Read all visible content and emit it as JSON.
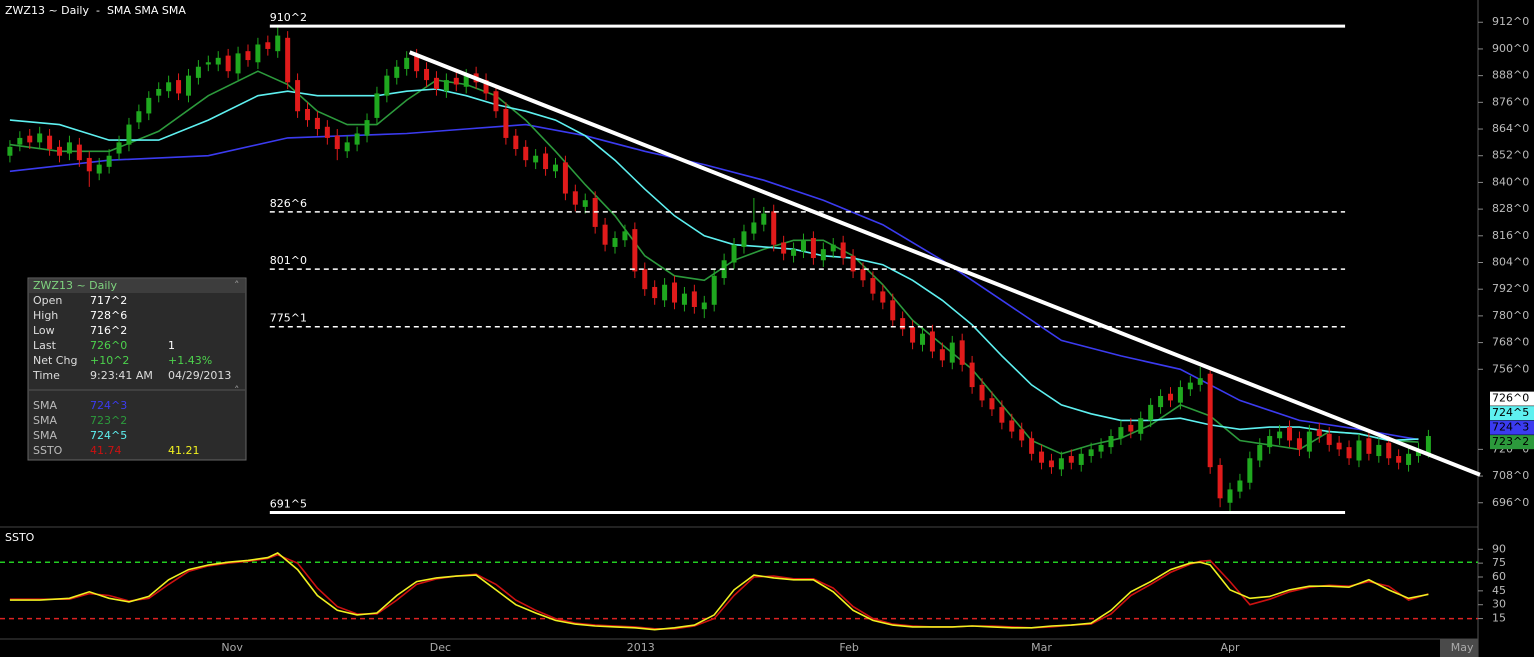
{
  "chart_data": [
    {
      "type": "candlestick",
      "title": "ZWZ13 ~ Daily  -  SMA SMA SMA",
      "up_color": "#1fa81f",
      "down_color": "#e01b1b",
      "xlim": [
        -1,
        148
      ],
      "ylim": [
        686,
        922
      ],
      "yticks": [
        {
          "value": 912,
          "label": "912^0"
        },
        {
          "value": 900,
          "label": "900^0"
        },
        {
          "value": 888,
          "label": "888^0"
        },
        {
          "value": 876,
          "label": "876^0"
        },
        {
          "value": 864,
          "label": "864^0"
        },
        {
          "value": 852,
          "label": "852^0"
        },
        {
          "value": 840,
          "label": "840^0"
        },
        {
          "value": 828,
          "label": "828^0"
        },
        {
          "value": 816,
          "label": "816^0"
        },
        {
          "value": 804,
          "label": "804^0"
        },
        {
          "value": 792,
          "label": "792^0"
        },
        {
          "value": 780,
          "label": "780^0"
        },
        {
          "value": 768,
          "label": "768^0"
        },
        {
          "value": 756,
          "label": "756^0"
        },
        {
          "value": 720,
          "label": "720^0"
        },
        {
          "value": 708,
          "label": "708^0"
        },
        {
          "value": 696,
          "label": "696^0"
        }
      ],
      "open": [
        852,
        857,
        861,
        858,
        861,
        856,
        853,
        857,
        851,
        844,
        847,
        853,
        857,
        867,
        871,
        879,
        881,
        886,
        879,
        887,
        893,
        893,
        897,
        889,
        899,
        894,
        903,
        899,
        905,
        886,
        873,
        869,
        865,
        861,
        854,
        857,
        861,
        869,
        879,
        887,
        891,
        897,
        891,
        887,
        881,
        887,
        883,
        889,
        886,
        881,
        873,
        861,
        856,
        849,
        853,
        845,
        849,
        836,
        829,
        833,
        821,
        811,
        814,
        819,
        801,
        793,
        787,
        795,
        785,
        791,
        783,
        785,
        797,
        804,
        811,
        817,
        821,
        827,
        813,
        807,
        809,
        815,
        805,
        809,
        813,
        807,
        801,
        797,
        791,
        787,
        779,
        775,
        767,
        773,
        765,
        759,
        769,
        759,
        749,
        743,
        739,
        733,
        729,
        725,
        719,
        715,
        711,
        717,
        713,
        717,
        719,
        721,
        725,
        731,
        727,
        733,
        739,
        745,
        741,
        747,
        749,
        754,
        713,
        696,
        701,
        705,
        715,
        721,
        725,
        730,
        725,
        719,
        729,
        727,
        723,
        721,
        715,
        725,
        717,
        723,
        717,
        713,
        717,
        717.25
      ],
      "high": [
        859,
        863,
        864,
        865,
        864,
        859,
        861,
        860,
        854,
        851,
        855,
        861,
        869,
        875,
        881,
        885,
        888,
        889,
        891,
        895,
        897,
        899,
        900,
        901,
        902,
        905,
        906,
        910.25,
        908,
        889,
        876,
        872,
        868,
        864,
        861,
        865,
        871,
        883,
        891,
        895,
        899,
        900,
        894,
        890,
        889,
        890,
        891,
        892,
        889,
        884,
        876,
        864,
        859,
        855,
        856,
        851,
        852,
        839,
        835,
        836,
        824,
        818,
        821,
        822,
        804,
        796,
        797,
        798,
        793,
        794,
        789,
        801,
        808,
        815,
        821,
        833,
        829,
        830,
        816,
        813,
        817,
        818,
        813,
        815,
        816,
        810,
        804,
        800,
        794,
        790,
        782,
        778,
        775,
        776,
        768,
        771,
        772,
        762,
        752,
        746,
        742,
        736,
        732,
        728,
        722,
        718,
        719,
        720,
        721,
        723,
        725,
        729,
        733,
        734,
        737,
        743,
        747,
        748,
        751,
        753,
        757,
        757,
        716,
        705,
        709,
        719,
        725,
        729,
        731,
        733,
        728,
        731,
        732,
        730,
        726,
        724,
        727,
        728,
        725,
        726,
        720,
        721,
        723,
        728.75
      ],
      "low": [
        849,
        854,
        855,
        855,
        852,
        849,
        850,
        847,
        838,
        841,
        844,
        850,
        854,
        864,
        868,
        876,
        878,
        877,
        876,
        884,
        890,
        890,
        887,
        886,
        892,
        891,
        897,
        896,
        882,
        869,
        865,
        861,
        857,
        850,
        851,
        854,
        858,
        866,
        876,
        884,
        888,
        887,
        883,
        879,
        878,
        881,
        880,
        882,
        877,
        869,
        857,
        852,
        847,
        846,
        843,
        842,
        832,
        827,
        826,
        817,
        809,
        808,
        811,
        797,
        789,
        785,
        784,
        783,
        782,
        781,
        779,
        782,
        794,
        801,
        808,
        814,
        818,
        809,
        805,
        804,
        806,
        803,
        802,
        806,
        803,
        797,
        793,
        787,
        783,
        775,
        771,
        765,
        764,
        761,
        757,
        756,
        755,
        745,
        739,
        735,
        729,
        725,
        721,
        715,
        711,
        709,
        708,
        711,
        710,
        714,
        716,
        718,
        722,
        725,
        724,
        730,
        736,
        739,
        738,
        744,
        746,
        709,
        694,
        692,
        698,
        702,
        712,
        718,
        722,
        721,
        717,
        716,
        723,
        719,
        717,
        713,
        712,
        715,
        714,
        713,
        711,
        710,
        714,
        716.25
      ],
      "close": [
        856,
        860,
        858,
        862,
        855,
        852,
        858,
        850,
        845,
        848,
        852,
        858,
        866,
        872,
        878,
        882,
        885,
        880,
        888,
        892,
        894,
        896,
        890,
        898,
        895,
        902,
        900,
        906,
        885,
        872,
        868,
        864,
        860,
        855,
        858,
        862,
        868,
        880,
        888,
        892,
        896,
        890,
        886,
        882,
        886,
        884,
        888,
        885,
        880,
        872,
        860,
        855,
        850,
        852,
        846,
        848,
        835,
        830,
        832,
        820,
        812,
        815,
        818,
        800,
        792,
        788,
        794,
        786,
        790,
        784,
        786,
        798,
        805,
        812,
        818,
        822,
        826,
        812,
        808,
        810,
        814,
        806,
        810,
        812,
        806,
        800,
        796,
        790,
        786,
        778,
        774,
        768,
        772,
        764,
        760,
        768,
        758,
        748,
        742,
        738,
        732,
        728,
        724,
        718,
        714,
        712,
        716,
        714,
        718,
        720,
        722,
        726,
        730,
        728,
        734,
        740,
        744,
        742,
        748,
        750,
        752,
        712,
        698,
        702,
        706,
        716,
        722,
        726,
        728,
        724,
        720,
        728,
        726,
        722,
        720,
        716,
        724,
        718,
        722,
        716,
        714,
        718,
        720,
        726
      ],
      "series": [
        {
          "name": "SMA",
          "color": "#3b3bf0",
          "last_label": "724^3",
          "x": [
            0,
            10,
            20,
            28,
            34,
            40,
            46,
            52,
            58,
            64,
            70,
            76,
            82,
            88,
            94,
            100,
            106,
            112,
            118,
            124,
            130,
            136,
            142
          ],
          "values": [
            845,
            850,
            852,
            860,
            861,
            862,
            864,
            866,
            861,
            854,
            848,
            841,
            832,
            821,
            805,
            787,
            769,
            762,
            756,
            742,
            733,
            729,
            724.375
          ]
        },
        {
          "name": "SMA",
          "color": "#2c9a3c",
          "last_label": "723^2",
          "x": [
            0,
            5,
            10,
            15,
            20,
            25,
            28,
            31,
            34,
            37,
            40,
            43,
            46,
            49,
            52,
            55,
            58,
            61,
            64,
            67,
            70,
            73,
            76,
            79,
            82,
            85,
            88,
            91,
            94,
            97,
            100,
            103,
            106,
            109,
            112,
            115,
            118,
            121,
            124,
            127,
            130,
            133,
            136,
            139,
            142
          ],
          "values": [
            857,
            854,
            854,
            863,
            879,
            890,
            884,
            872,
            866,
            866,
            877,
            886,
            884,
            879,
            868,
            854,
            839,
            825,
            807,
            798,
            796,
            805,
            810,
            814,
            814,
            807,
            794,
            778,
            767,
            756,
            740,
            724,
            718,
            722,
            725,
            731,
            740,
            735,
            724,
            722,
            720,
            728,
            727,
            724,
            723.25
          ]
        },
        {
          "name": "SMA",
          "color": "#5ef0f0",
          "last_label": "724^5",
          "x": [
            0,
            5,
            10,
            15,
            20,
            25,
            28,
            31,
            34,
            37,
            40,
            43,
            46,
            49,
            52,
            55,
            58,
            61,
            64,
            67,
            70,
            73,
            76,
            79,
            82,
            85,
            88,
            91,
            94,
            97,
            100,
            103,
            106,
            109,
            112,
            115,
            118,
            121,
            124,
            127,
            130,
            133,
            136,
            139,
            142
          ],
          "values": [
            868,
            866,
            859,
            859,
            868,
            879,
            881,
            879,
            879,
            879,
            881,
            882,
            879,
            875,
            872,
            868,
            861,
            850,
            837,
            825,
            816,
            812,
            811,
            810,
            807,
            806,
            803,
            796,
            787,
            776,
            762,
            749,
            740,
            736,
            733,
            733,
            734,
            731,
            729,
            730,
            730,
            728,
            727,
            724,
            724.625
          ]
        }
      ],
      "levels": [
        {
          "value": 910.25,
          "label": "910^2",
          "style": "solid",
          "x": [
            26.2,
            134.6
          ]
        },
        {
          "value": 826.75,
          "label": "826^6",
          "style": "dashed",
          "x": [
            26.2,
            134.6
          ]
        },
        {
          "value": 801,
          "label": "801^0",
          "style": "dashed",
          "x": [
            26.2,
            134.6
          ]
        },
        {
          "value": 775.125,
          "label": "775^1",
          "style": "dashed",
          "x": [
            26.2,
            134.6
          ]
        },
        {
          "value": 691.625,
          "label": "691^5",
          "style": "solid",
          "x": [
            26.2,
            134.6
          ]
        }
      ],
      "trendline": {
        "x": [
          40.3,
          148.2
        ],
        "values": [
          898.5,
          708.6
        ],
        "color": "#ffffff"
      }
    },
    {
      "type": "line",
      "title": "SSTO",
      "xlim": [
        -1,
        148
      ],
      "ylim": [
        -6,
        113
      ],
      "yticks": [
        15,
        30,
        45,
        60,
        75,
        90
      ],
      "xticks": [
        {
          "value": 22.4,
          "label": "Nov"
        },
        {
          "value": 43.4,
          "label": "Dec"
        },
        {
          "value": 63.6,
          "label": "2013"
        },
        {
          "value": 84.6,
          "label": "Feb"
        },
        {
          "value": 104,
          "label": "Mar"
        },
        {
          "value": 123,
          "label": "Apr"
        },
        {
          "value": 146.4,
          "label": "May"
        }
      ],
      "levels": [
        {
          "value": 76,
          "color": "#22cc22"
        },
        {
          "value": 15,
          "color": "#dd2222"
        }
      ],
      "x": [
        0,
        3,
        6,
        8,
        10,
        12,
        14,
        16,
        18,
        20,
        22,
        24,
        26,
        27,
        29,
        31,
        33,
        35,
        37,
        39,
        41,
        43,
        45,
        47,
        49,
        51,
        53,
        55,
        57,
        59,
        61,
        63,
        65,
        67,
        69,
        71,
        73,
        75,
        77,
        79,
        81,
        83,
        85,
        87,
        89,
        91,
        93,
        95,
        97,
        99,
        101,
        103,
        105,
        107,
        109,
        111,
        113,
        115,
        117,
        119,
        120,
        121,
        123,
        125,
        127,
        129,
        131,
        133,
        135,
        137,
        139,
        141,
        143
      ],
      "series": [
        {
          "color": "#cc1111",
          "values": [
            36,
            36,
            36,
            42,
            40,
            34,
            37,
            52,
            66,
            72,
            75,
            77,
            80,
            84,
            75,
            48,
            28,
            20,
            20,
            35,
            52,
            58,
            61,
            63,
            52,
            35,
            24,
            15,
            10,
            8,
            7,
            6,
            4,
            4,
            7,
            15,
            40,
            60,
            61,
            58,
            58,
            48,
            28,
            15,
            9,
            7,
            6,
            6,
            7,
            7,
            6,
            5,
            6,
            8,
            9,
            20,
            40,
            52,
            65,
            74,
            77,
            78,
            55,
            30,
            36,
            44,
            49,
            51,
            50,
            55,
            50,
            35,
            41.74
          ]
        },
        {
          "color": "#f0f020",
          "values": [
            35,
            35,
            37,
            44,
            37,
            33,
            39,
            57,
            68,
            73,
            76,
            78,
            81,
            86,
            68,
            40,
            24,
            19,
            21,
            40,
            55,
            59,
            61,
            62,
            46,
            30,
            21,
            13,
            9,
            7,
            6,
            5,
            3,
            5,
            8,
            19,
            46,
            62,
            59,
            57,
            57,
            44,
            24,
            13,
            8,
            6,
            6,
            6,
            7,
            6,
            5,
            5,
            7,
            8,
            10,
            24,
            44,
            55,
            68,
            75,
            76,
            73,
            46,
            37,
            39,
            46,
            50,
            50,
            49,
            57,
            46,
            37,
            41.21
          ]
        }
      ]
    }
  ],
  "info_box": {
    "title": "ZWZ13 ~ Daily",
    "rows": [
      [
        "Open",
        "717^2"
      ],
      [
        "High",
        "728^6"
      ],
      [
        "Low",
        "716^2"
      ],
      [
        "Last",
        "726^0",
        "1"
      ],
      [
        "Net Chg",
        "+10^2",
        "+1.43%"
      ],
      [
        "Time",
        "9:23:41 AM",
        "04/29/2013"
      ]
    ]
  }
}
